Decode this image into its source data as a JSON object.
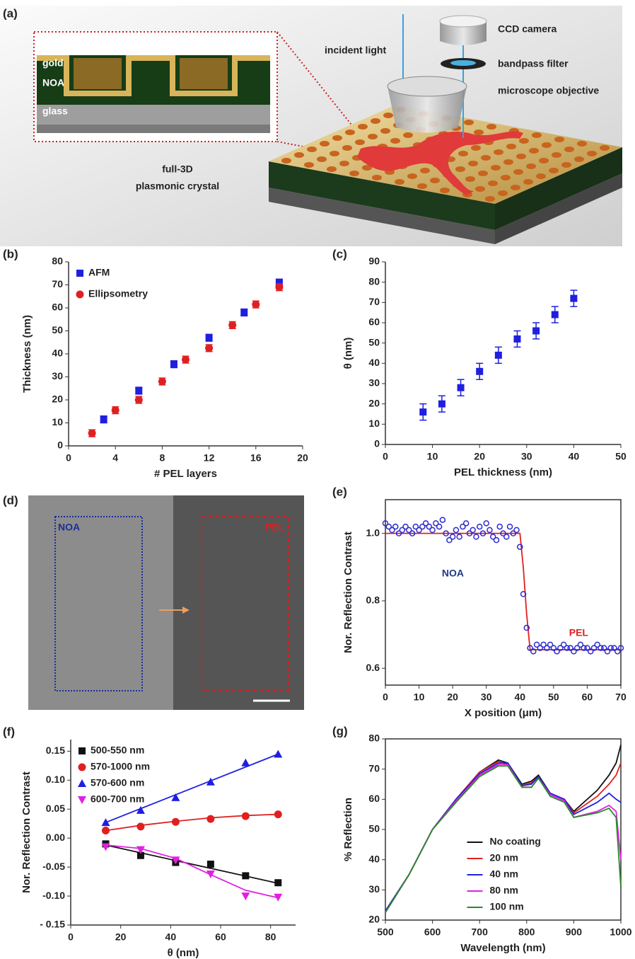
{
  "panel_a": {
    "label": "(a)",
    "inset_labels": [
      "gold",
      "NOA",
      "glass"
    ],
    "incident_light": "incident light",
    "ccd_camera": "CCD camera",
    "bandpass_filter": "bandpass filter",
    "objective": "microscope objective",
    "crystal_caption": [
      "full-3D",
      "plasmonic crystal"
    ]
  },
  "panel_d": {
    "label": "(d)",
    "left_region": "NOA",
    "right_region": "PEL"
  },
  "chart_data": [
    {
      "type": "scatter",
      "panel": "(b)",
      "x_label": "# PEL layers",
      "y_label": "Thickness (nm)",
      "xlim": [
        0,
        20
      ],
      "xticks": [
        0,
        4,
        8,
        12,
        16,
        20
      ],
      "ylim": [
        0,
        80
      ],
      "yticks": [
        0,
        10,
        20,
        30,
        40,
        50,
        60,
        70,
        80
      ],
      "legend": "upper left",
      "series": [
        {
          "name": "AFM",
          "color": "#1f1fe0",
          "marker": "square",
          "x": [
            3,
            6,
            9,
            12,
            15,
            18
          ],
          "values": [
            11.5,
            24,
            35.5,
            47,
            58,
            71
          ],
          "errors": [
            1.5,
            1.5,
            1.5,
            1.5,
            1.5,
            1.5
          ]
        },
        {
          "name": "Ellipsometry",
          "color": "#e02020",
          "marker": "circle",
          "x": [
            2,
            4,
            6,
            8,
            10,
            12,
            14,
            16,
            18
          ],
          "values": [
            5.5,
            15.5,
            20,
            28,
            37.5,
            42.5,
            52.5,
            61.5,
            69
          ],
          "errors": [
            1.5,
            1.5,
            1.5,
            1.5,
            1.5,
            1.5,
            1.5,
            1.5,
            1.5
          ]
        }
      ]
    },
    {
      "type": "scatter",
      "panel": "(c)",
      "x_label": "PEL thickness (nm)",
      "y_label": "θ (nm)",
      "xlim": [
        0,
        50
      ],
      "xticks": [
        0,
        10,
        20,
        30,
        40,
        50
      ],
      "ylim": [
        0,
        90
      ],
      "yticks": [
        0,
        10,
        20,
        30,
        40,
        50,
        60,
        70,
        80,
        90
      ],
      "series": [
        {
          "color": "#1f1fe0",
          "marker": "square",
          "x": [
            8,
            12,
            16,
            20,
            24,
            28,
            32,
            36,
            40
          ],
          "values": [
            16,
            20,
            28,
            36,
            44,
            52,
            56,
            64,
            72
          ],
          "errors": [
            4,
            4,
            4,
            4,
            4,
            4,
            4,
            4,
            4
          ]
        }
      ]
    },
    {
      "type": "scatter",
      "panel": "(e)",
      "x_label": "X position (μm)",
      "y_label": "Nor.  Reflection Contrast",
      "xlim": [
        0,
        70
      ],
      "xticks": [
        0,
        10,
        20,
        30,
        40,
        50,
        60,
        70
      ],
      "ylim": [
        0.55,
        1.1
      ],
      "yticks": [
        0.6,
        0.8,
        {
          "value": 1.0,
          "label": "1.0"
        }
      ],
      "annotations": [
        {
          "text": "NOA",
          "color": "#1f3a8a"
        },
        {
          "text": "PEL",
          "color": "#e02020"
        }
      ],
      "series": [
        {
          "color": "#2a2ad0",
          "marker": "open-circle",
          "x": [
            0,
            1,
            2,
            3,
            4,
            5,
            6,
            7,
            8,
            9,
            10,
            11,
            12,
            13,
            14,
            15,
            16,
            17,
            18,
            19,
            20,
            21,
            22,
            23,
            24,
            25,
            26,
            27,
            28,
            29,
            30,
            31,
            32,
            33,
            34,
            35,
            36,
            37,
            38,
            39,
            40,
            41,
            42,
            43,
            44,
            45,
            46,
            47,
            48,
            49,
            50,
            51,
            52,
            53,
            54,
            55,
            56,
            57,
            58,
            59,
            60,
            61,
            62,
            63,
            64,
            65,
            66,
            67,
            68,
            69,
            70
          ],
          "values": [
            1.03,
            1.02,
            1.01,
            1.02,
            1.0,
            1.01,
            1.02,
            1.01,
            1.0,
            1.02,
            1.01,
            1.02,
            1.03,
            1.02,
            1.01,
            1.03,
            1.02,
            1.04,
            1.0,
            0.98,
            0.99,
            1.01,
            0.99,
            1.02,
            1.03,
            1.0,
            1.01,
            0.99,
            1.02,
            1.0,
            1.03,
            1.01,
            0.99,
            0.98,
            1.02,
            1.0,
            0.99,
            1.02,
            1.0,
            1.01,
            0.96,
            0.82,
            0.72,
            0.66,
            0.65,
            0.67,
            0.66,
            0.67,
            0.66,
            0.67,
            0.66,
            0.65,
            0.66,
            0.67,
            0.66,
            0.66,
            0.65,
            0.66,
            0.67,
            0.66,
            0.66,
            0.65,
            0.66,
            0.67,
            0.66,
            0.66,
            0.65,
            0.66,
            0.66,
            0.65,
            0.66
          ],
          "fit": {
            "color": "#e02020",
            "x": [
              0,
              40,
              41,
              42,
              43,
              70
            ],
            "values": [
              1.0,
              1.0,
              0.9,
              0.76,
              0.655,
              0.655
            ]
          }
        }
      ]
    },
    {
      "type": "scatter",
      "panel": "(f)",
      "x_label": "θ (nm)",
      "y_label": "Nor.  Reflection Contrast",
      "xlim": [
        0,
        90
      ],
      "xticks": [
        0,
        20,
        40,
        60,
        80
      ],
      "ylim": [
        -0.15,
        0.17
      ],
      "yticks": [
        {
          "value": -0.15,
          "label": "- 0.15"
        },
        {
          "value": -0.1,
          "label": "-0.10"
        },
        -0.05,
        {
          "value": 0,
          "label": "0.00"
        },
        0.05,
        {
          "value": 0.1,
          "label": "0.10"
        },
        0.15
      ],
      "legend": "upper left",
      "series": [
        {
          "name": "500-550 nm",
          "color": "#111111",
          "marker": "square",
          "x": [
            14,
            28,
            42,
            56,
            70,
            83
          ],
          "values": [
            -0.01,
            -0.03,
            -0.042,
            -0.045,
            -0.065,
            -0.077
          ],
          "fit": {
            "color": "#111111",
            "x": [
              14,
              83
            ],
            "values": [
              -0.012,
              -0.078
            ]
          }
        },
        {
          "name": "570-1000 nm",
          "color": "#e02020",
          "marker": "circle",
          "x": [
            14,
            28,
            42,
            56,
            70,
            83
          ],
          "values": [
            0.013,
            0.02,
            0.028,
            0.033,
            0.038,
            0.041
          ],
          "fit": {
            "color": "#e02020",
            "x": [
              14,
              28,
              42,
              56,
              70,
              83
            ],
            "values": [
              0.013,
              0.022,
              0.029,
              0.035,
              0.039,
              0.041
            ]
          }
        },
        {
          "name": "570-600 nm",
          "color": "#1f1fe0",
          "marker": "triangle",
          "x": [
            14,
            28,
            42,
            56,
            70,
            83
          ],
          "values": [
            0.027,
            0.048,
            0.07,
            0.097,
            0.13,
            0.145
          ],
          "fit": {
            "color": "#1f1fe0",
            "x": [
              14,
              83
            ],
            "values": [
              0.027,
              0.145
            ]
          }
        },
        {
          "name": "600-700 nm",
          "color": "#e020e0",
          "marker": "triangle-down",
          "x": [
            14,
            28,
            42,
            56,
            70,
            83
          ],
          "values": [
            -0.015,
            -0.02,
            -0.038,
            -0.062,
            -0.1,
            -0.102
          ],
          "fit": {
            "color": "#e020e0",
            "x": [
              14,
              28,
              42,
              56,
              70,
              83
            ],
            "values": [
              -0.012,
              -0.018,
              -0.035,
              -0.063,
              -0.09,
              -0.103
            ]
          }
        }
      ]
    },
    {
      "type": "line",
      "panel": "(g)",
      "x_label": "Wavelength (nm)",
      "y_label": "% Reflection",
      "xlim": [
        500,
        1000
      ],
      "xticks": [
        500,
        600,
        700,
        800,
        900,
        1000
      ],
      "ylim": [
        20,
        80
      ],
      "yticks": [
        20,
        30,
        40,
        50,
        60,
        70,
        80
      ],
      "legend": "lower center",
      "x": [
        500,
        550,
        600,
        650,
        700,
        740,
        760,
        790,
        810,
        825,
        850,
        880,
        900,
        950,
        975,
        990,
        1000
      ],
      "series": [
        {
          "name": "No coating",
          "color": "#111111",
          "values": [
            23,
            35,
            50,
            60,
            69,
            73,
            72,
            65,
            66,
            68,
            62,
            60,
            56,
            63,
            68,
            72,
            78
          ]
        },
        {
          "name": "20 nm",
          "color": "#e02020",
          "values": [
            23,
            35,
            50,
            60,
            69,
            72.5,
            71.5,
            64.5,
            65.5,
            67.5,
            62,
            60,
            55.5,
            61,
            65,
            68,
            72
          ]
        },
        {
          "name": "40 nm",
          "color": "#2020e0",
          "values": [
            23,
            35,
            50,
            60,
            68.5,
            72,
            72,
            64.5,
            65,
            67.5,
            62,
            60,
            55,
            59,
            62,
            60,
            59
          ]
        },
        {
          "name": "80 nm",
          "color": "#e020e0",
          "values": [
            22.5,
            35,
            50,
            59.5,
            68,
            71.5,
            71.5,
            64,
            64,
            67,
            61.5,
            59.5,
            54,
            56,
            58,
            56,
            40
          ]
        },
        {
          "name": "100 nm",
          "color": "#2a8a2a",
          "values": [
            22.5,
            35,
            50,
            59,
            67.5,
            71,
            71,
            64,
            64,
            67,
            61,
            59,
            54,
            55.5,
            57,
            54,
            31
          ]
        }
      ]
    }
  ]
}
